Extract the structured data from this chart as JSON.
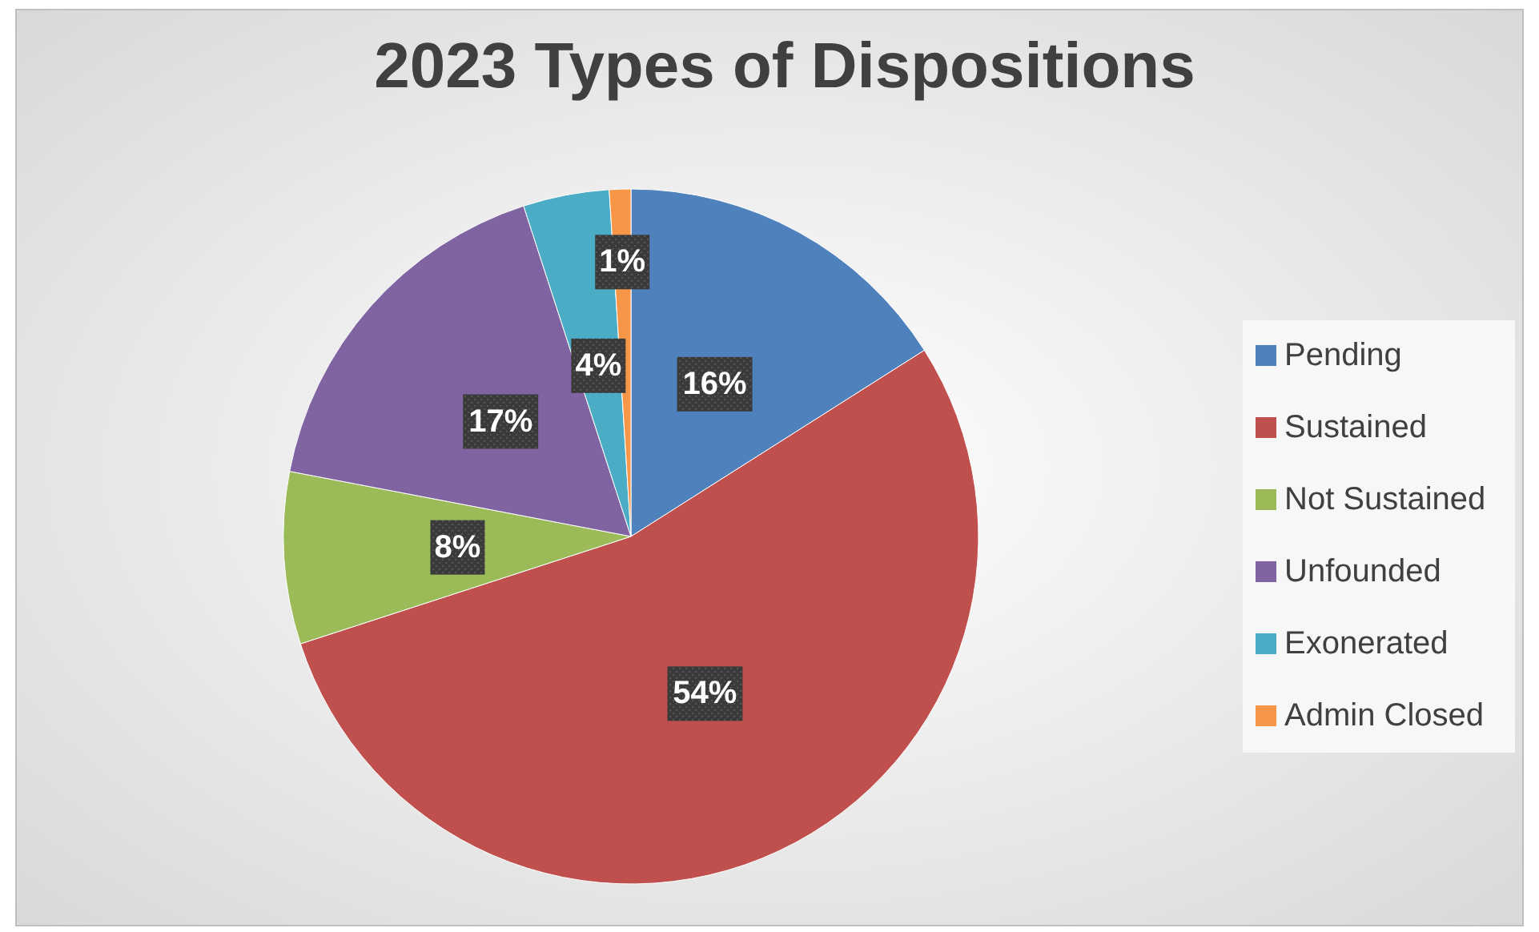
{
  "chart_data": {
    "type": "pie",
    "title": "2023 Types of Dispositions",
    "categories": [
      "Pending",
      "Sustained",
      "Not Sustained",
      "Unfounded",
      "Exonerated",
      "Admin Closed"
    ],
    "values": [
      16,
      54,
      8,
      17,
      4,
      1
    ],
    "colors": [
      "#4f81bd",
      "#c0504d",
      "#9bbb59",
      "#8064a2",
      "#4bacc6",
      "#f79646"
    ],
    "value_labels": [
      "16%",
      "54%",
      "8%",
      "17%",
      "4%",
      "1%"
    ],
    "legend": "right"
  }
}
